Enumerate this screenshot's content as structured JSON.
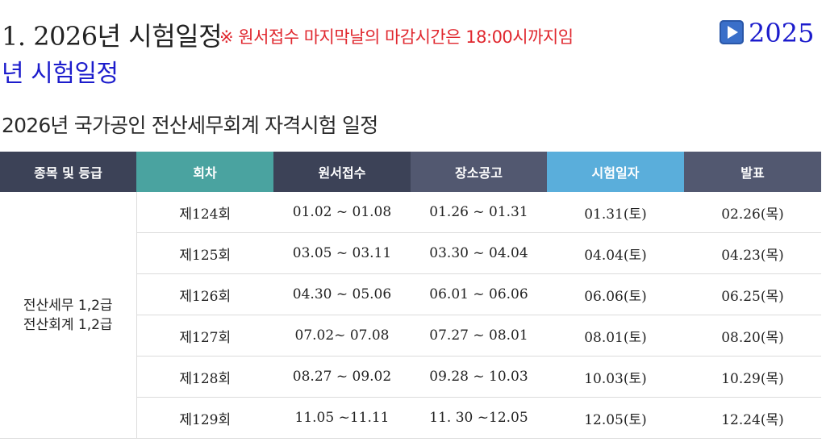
{
  "headline": {
    "title": "1. 2026년 시험일정",
    "notice": "※ 원서접수 마지막날의 마감시간은 18:00시까지임",
    "link_year": "2025",
    "link_rest": "년 시험일정",
    "link_icon": "play-button-icon"
  },
  "subtitle": "2026년 국가공인 전산세무회계 자격시험 일정",
  "table": {
    "headers": [
      "종목 및 등급",
      "회차",
      "원서접수",
      "장소공고",
      "시험일자",
      "발표"
    ],
    "header_colors": [
      "#3c4257",
      "#4aa3a0",
      "#3c4257",
      "#525870",
      "#5aaedb",
      "#525870"
    ],
    "grade_line1": "전산세무 1,2급",
    "grade_line2": "전산회계 1,2급",
    "rows": [
      {
        "round": "제124회",
        "application": "01.02 ~ 01.08",
        "venue": "01.26 ~ 01.31",
        "exam": "01.31(토)",
        "result": "02.26(목)"
      },
      {
        "round": "제125회",
        "application": "03.05 ~ 03.11",
        "venue": "03.30 ~ 04.04",
        "exam": "04.04(토)",
        "result": "04.23(목)"
      },
      {
        "round": "제126회",
        "application": "04.30 ~ 05.06",
        "venue": "06.01 ~ 06.06",
        "exam": "06.06(토)",
        "result": "06.25(목)"
      },
      {
        "round": "제127회",
        "application": "07.02~ 07.08",
        "venue": "07.27 ~ 08.01",
        "exam": "08.01(토)",
        "result": "08.20(목)"
      },
      {
        "round": "제128회",
        "application": "08.27 ~ 09.02",
        "venue": "09.28 ~ 10.03",
        "exam": "10.03(토)",
        "result": "10.29(목)"
      },
      {
        "round": "제129회",
        "application": "11.05 ~11.11",
        "venue": "11. 30 ~12.05",
        "exam": "12.05(토)",
        "result": "12.24(목)"
      }
    ]
  }
}
